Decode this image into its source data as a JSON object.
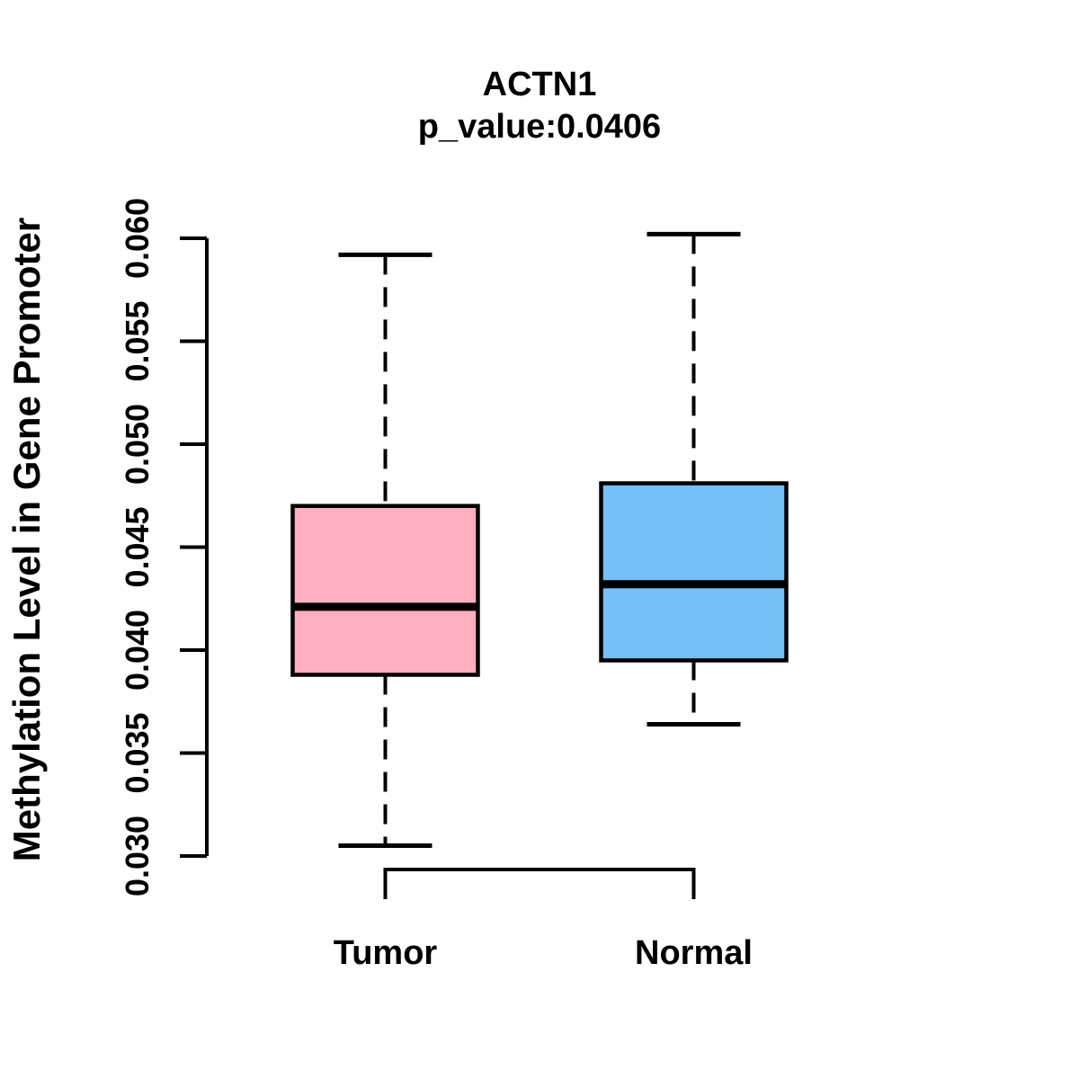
{
  "figure": {
    "background": "#ffffff"
  },
  "chart_data": {
    "type": "boxplot",
    "title": "ACTN1",
    "subtitle": "p_value:0.0406",
    "ylabel": "Methylation Level in Gene Promoter",
    "xlabel": "",
    "categories": [
      "Tumor",
      "Normal"
    ],
    "series": [
      {
        "name": "Tumor",
        "min": 0.0305,
        "q1": 0.0388,
        "median": 0.0421,
        "q3": 0.047,
        "max": 0.0592,
        "fill": "#FFAFBF"
      },
      {
        "name": "Normal",
        "min": 0.0364,
        "q1": 0.0395,
        "median": 0.0432,
        "q3": 0.0481,
        "max": 0.0602,
        "fill": "#74BFF6"
      }
    ],
    "ylim": [
      0.03,
      0.06
    ],
    "yticks": [
      0.03,
      0.035,
      0.04,
      0.045,
      0.05,
      0.055,
      0.06
    ],
    "ytick_labels": [
      "0.030",
      "0.035",
      "0.040",
      "0.045",
      "0.050",
      "0.055",
      "0.060"
    ],
    "grid": false,
    "legend": "none",
    "colors": {
      "box_border": "#000000",
      "median": "#000000",
      "axis": "#000000",
      "text": "#000000",
      "tumor_fill": "#FFAFBF",
      "normal_fill": "#74BFF6"
    }
  }
}
